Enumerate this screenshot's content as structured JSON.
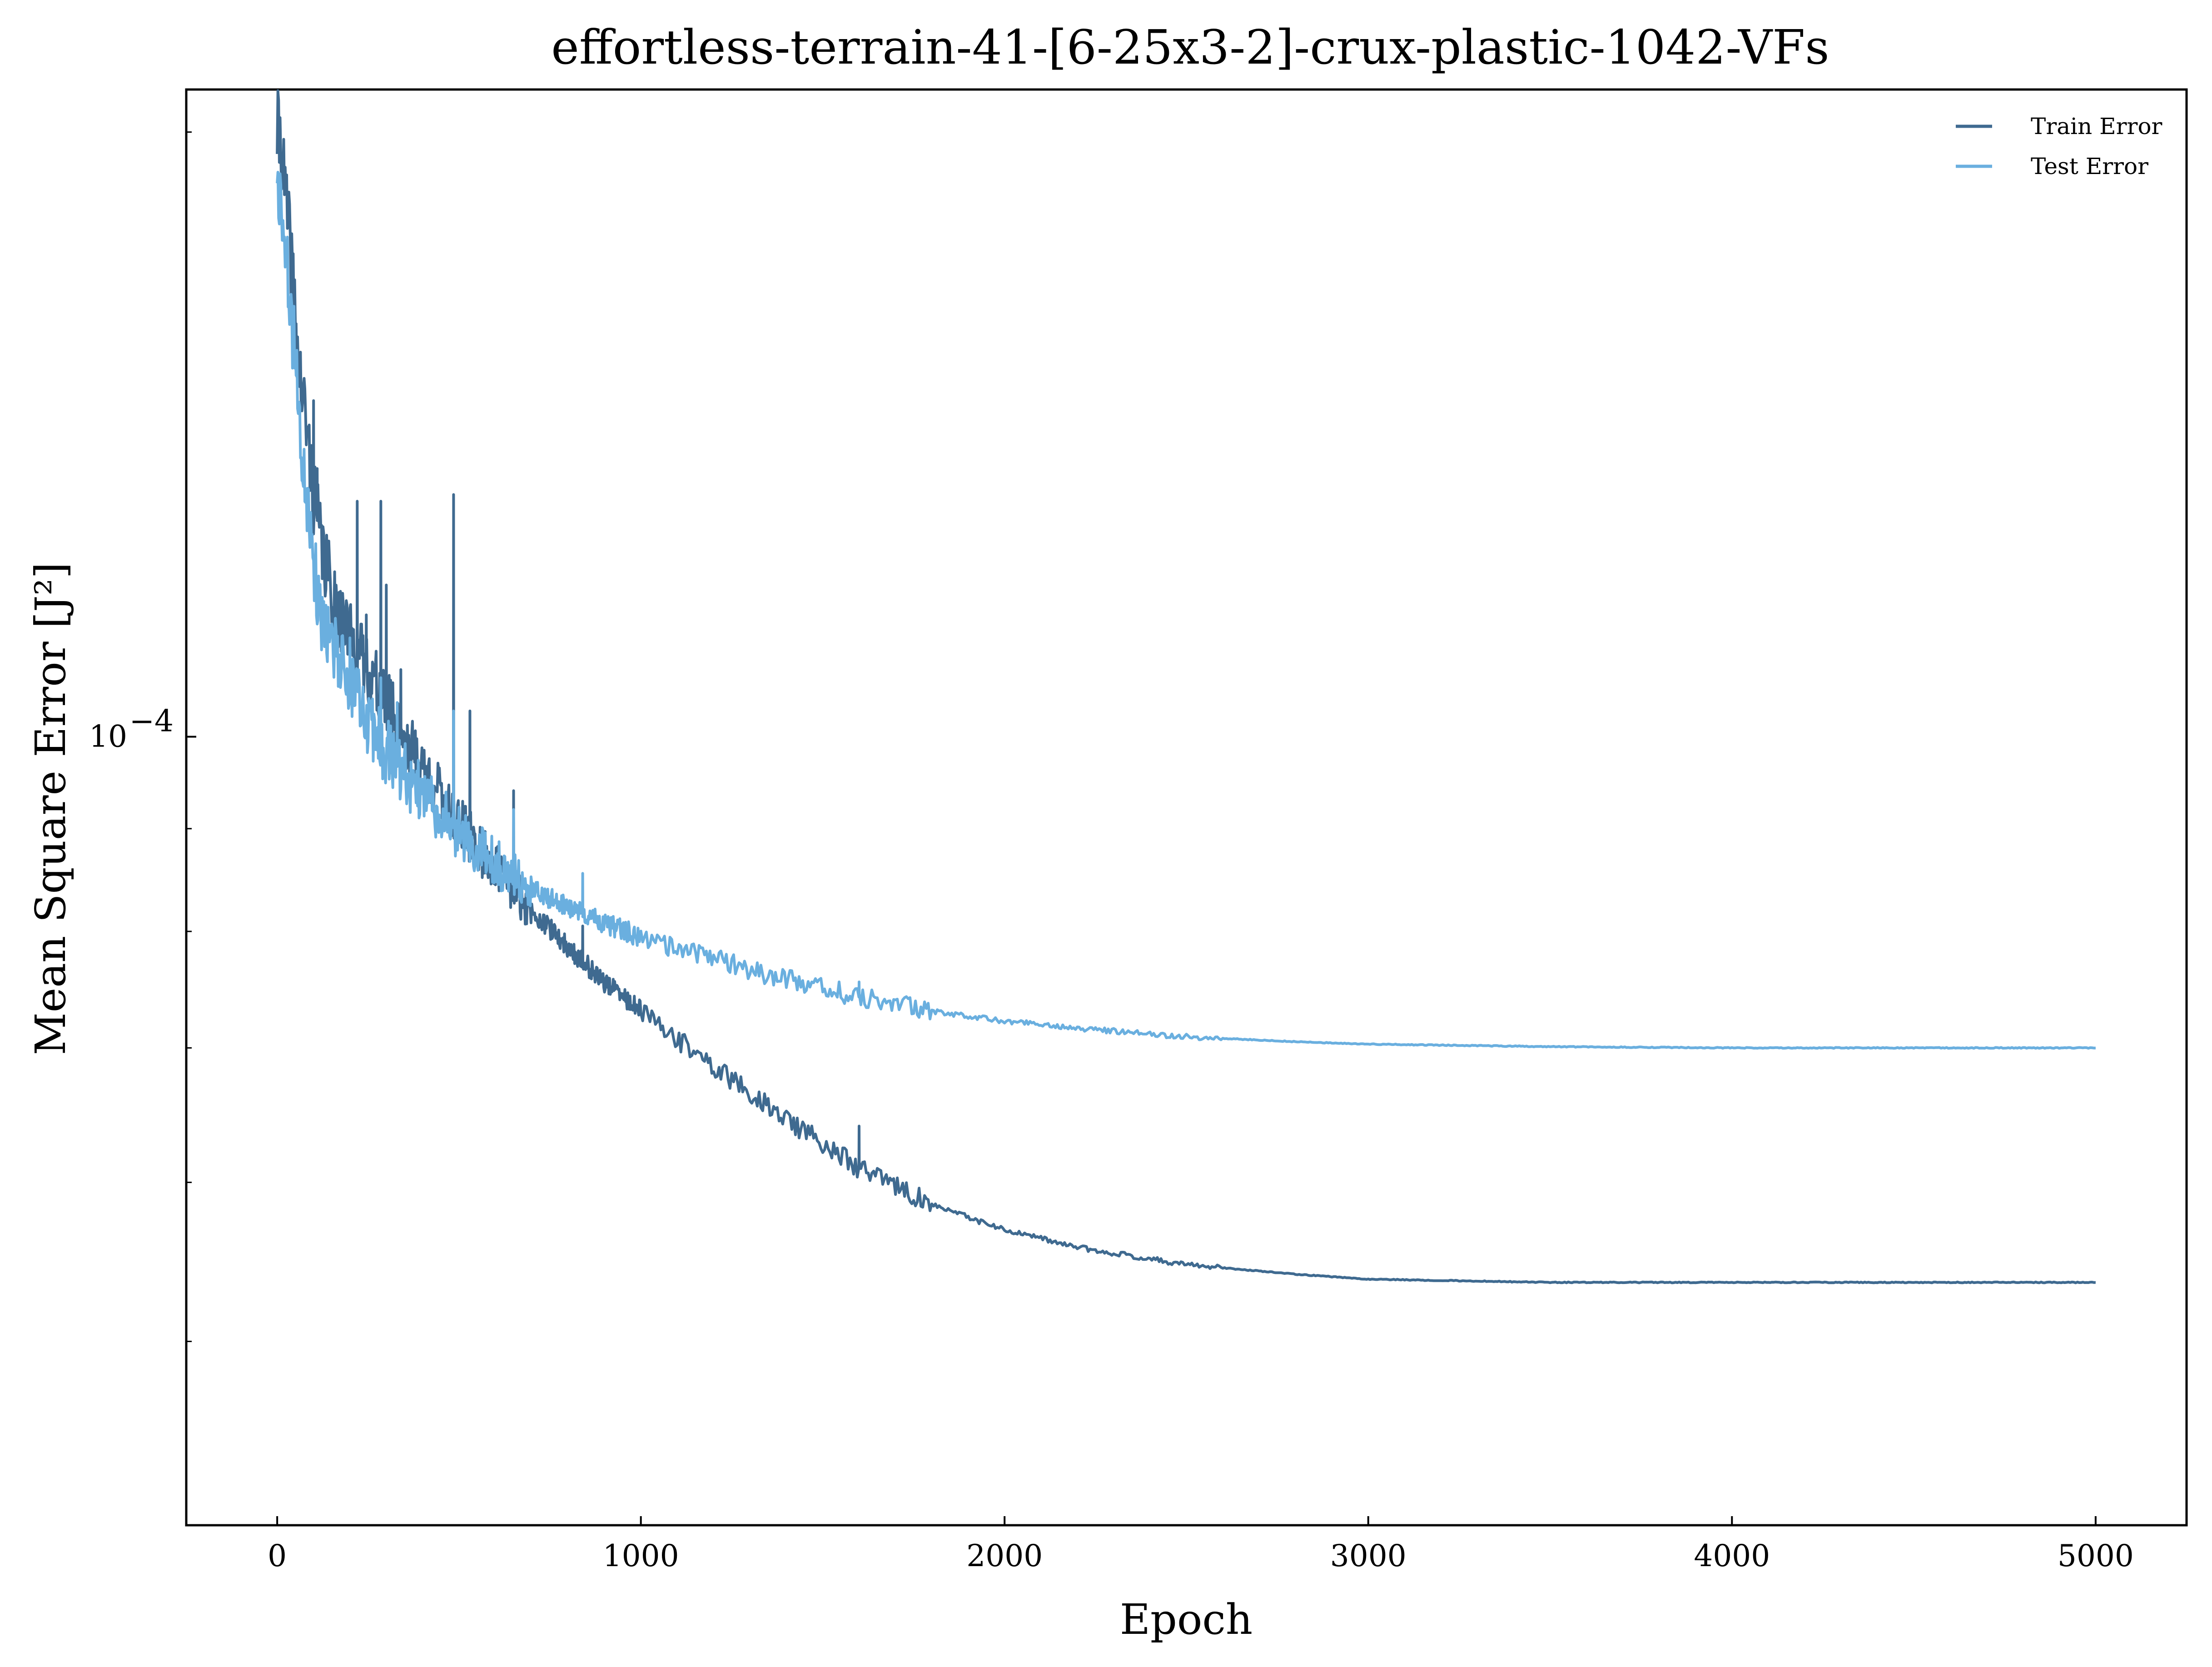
{
  "chart_data": {
    "type": "line",
    "title": "effortless-terrain-41-[6-25x3-2]-crux-plastic-1042-VFs",
    "xlabel": "Epoch",
    "ylabel": "Mean Square Error [J²]",
    "xlim": [
      -250,
      5250
    ],
    "ylim": [
      4.05e-05,
      0.00021
    ],
    "yscale": "log",
    "xticks": [
      0,
      1000,
      2000,
      3000,
      4000,
      5000
    ],
    "xtick_labels": [
      "0",
      "1000",
      "2000",
      "3000",
      "4000",
      "5000"
    ],
    "ymajor_ticks": [
      0.0001
    ],
    "ymajor_tick_labels": [
      {
        "base": "10",
        "exp": "−4"
      }
    ],
    "yminor_ticks": [
      5e-05,
      6e-05,
      7e-05,
      8e-05,
      9e-05,
      0.0002
    ],
    "grid": false,
    "legend_position": "top-right",
    "series": [
      {
        "name": "Train Error",
        "color": "#3f6a90",
        "x": [
          0,
          10,
          20,
          40,
          60,
          80,
          100,
          120,
          150,
          200,
          250,
          300,
          350,
          400,
          450,
          500,
          600,
          700,
          800,
          900,
          1000,
          1200,
          1400,
          1600,
          1800,
          2000,
          2200,
          2500,
          2800,
          3000,
          3500,
          4000,
          5000
        ],
        "y": [
          0.0002,
          0.000199,
          0.000188,
          0.000172,
          0.000152,
          0.000143,
          0.000132,
          0.000125,
          0.000118,
          0.000112,
          0.000108,
          0.000104,
          0.0001,
          9.65e-05,
          9.35e-05,
          9.05e-05,
          8.6e-05,
          8.2e-05,
          7.85e-05,
          7.55e-05,
          7.3e-05,
          6.85e-05,
          6.45e-05,
          6.1e-05,
          5.85e-05,
          5.68e-05,
          5.57e-05,
          5.46e-05,
          5.4e-05,
          5.37e-05,
          5.35e-05,
          5.35e-05,
          5.35e-05
        ],
        "spikes": [
          {
            "x": 100,
            "y": 0.000147
          },
          {
            "x": 110,
            "y": 0.000136
          },
          {
            "x": 170,
            "y": 0.000118
          },
          {
            "x": 220,
            "y": 0.000131
          },
          {
            "x": 245,
            "y": 0.000115
          },
          {
            "x": 285,
            "y": 0.000131
          },
          {
            "x": 300,
            "y": 0.000119
          },
          {
            "x": 340,
            "y": 0.000108
          },
          {
            "x": 485,
            "y": 0.000132
          },
          {
            "x": 530,
            "y": 0.000103
          },
          {
            "x": 650,
            "y": 9.4e-05
          },
          {
            "x": 840,
            "y": 8.05e-05
          },
          {
            "x": 1600,
            "y": 6.4e-05
          }
        ]
      },
      {
        "name": "Test Error",
        "color": "#6aafdf",
        "x": [
          0,
          10,
          20,
          40,
          60,
          80,
          100,
          120,
          150,
          200,
          250,
          300,
          350,
          400,
          450,
          500,
          600,
          700,
          800,
          900,
          1000,
          1200,
          1400,
          1600,
          1800,
          2000,
          2200,
          2500,
          2800,
          3000,
          3500,
          4000,
          5000
        ],
        "y": [
          0.000186,
          0.000184,
          0.000176,
          0.000162,
          0.000145,
          0.000133,
          0.000122,
          0.000116,
          0.000111,
          0.000106,
          0.000102,
          9.85e-05,
          9.6e-05,
          9.35e-05,
          9.15e-05,
          8.95e-05,
          8.65e-05,
          8.4e-05,
          8.22e-05,
          8.08e-05,
          7.95e-05,
          7.75e-05,
          7.57e-05,
          7.42e-05,
          7.3e-05,
          7.22e-05,
          7.16e-05,
          7.09e-05,
          7.05e-05,
          7.03e-05,
          7.01e-05,
          7e-05,
          7e-05
        ],
        "spikes": [
          {
            "x": 200,
            "y": 0.000112
          },
          {
            "x": 285,
            "y": 0.000107
          },
          {
            "x": 330,
            "y": 0.000104
          },
          {
            "x": 485,
            "y": 0.000103
          },
          {
            "x": 650,
            "y": 9.2e-05
          },
          {
            "x": 840,
            "y": 8.55e-05
          },
          {
            "x": 1600,
            "y": 7.55e-05
          }
        ]
      }
    ]
  }
}
